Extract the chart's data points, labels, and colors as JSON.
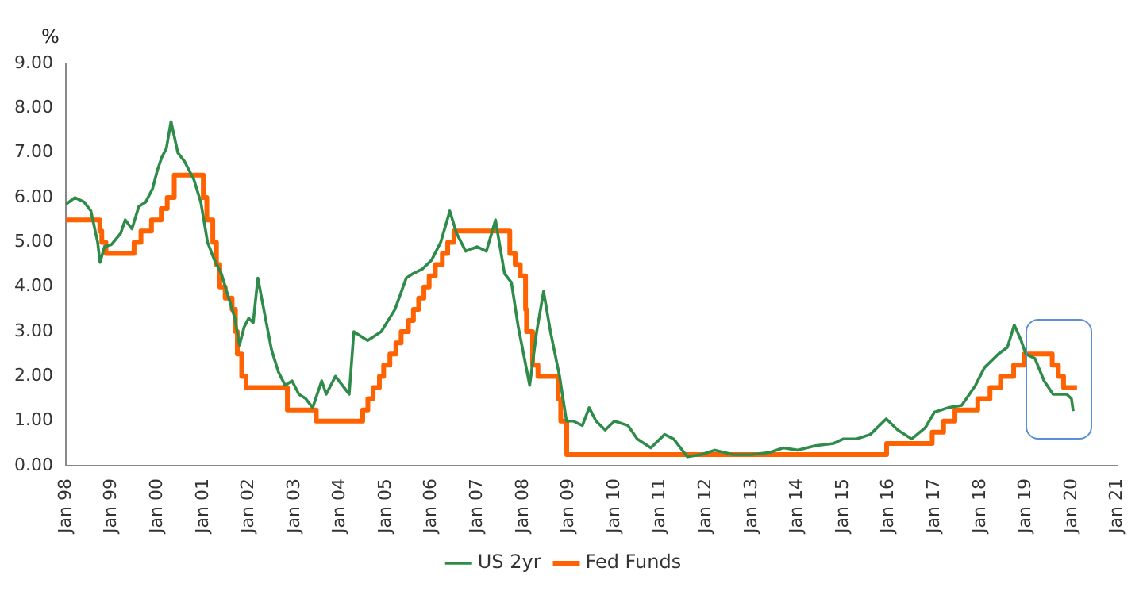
{
  "chart_data": {
    "type": "line",
    "ylabel": "%",
    "xlim": [
      "1998-01",
      "2021-01"
    ],
    "xticks": [
      {
        "value": "1998-01",
        "label": "Jan 98"
      },
      {
        "value": "1999-01",
        "label": "Jan 99"
      },
      {
        "value": "2000-01",
        "label": "Jan 00"
      },
      {
        "value": "2001-01",
        "label": "Jan 01"
      },
      {
        "value": "2002-01",
        "label": "Jan 02"
      },
      {
        "value": "2003-01",
        "label": "Jan 03"
      },
      {
        "value": "2004-01",
        "label": "Jan 04"
      },
      {
        "value": "2005-01",
        "label": "Jan 05"
      },
      {
        "value": "2006-01",
        "label": "Jan 06"
      },
      {
        "value": "2007-01",
        "label": "Jan 07"
      },
      {
        "value": "2008-01",
        "label": "Jan 08"
      },
      {
        "value": "2009-01",
        "label": "Jan 09"
      },
      {
        "value": "2010-01",
        "label": "Jan 10"
      },
      {
        "value": "2011-01",
        "label": "Jan 11"
      },
      {
        "value": "2012-01",
        "label": "Jan 12"
      },
      {
        "value": "2013-01",
        "label": "Jan 13"
      },
      {
        "value": "2014-01",
        "label": "Jan 14"
      },
      {
        "value": "2015-01",
        "label": "Jan 15"
      },
      {
        "value": "2016-01",
        "label": "Jan 16"
      },
      {
        "value": "2017-01",
        "label": "Jan 17"
      },
      {
        "value": "2018-01",
        "label": "Jan 18"
      },
      {
        "value": "2019-01",
        "label": "Jan 19"
      },
      {
        "value": "2020-01",
        "label": "Jan 20"
      },
      {
        "value": "2021-01",
        "label": "Jan 21"
      }
    ],
    "ylim": [
      0,
      9
    ],
    "yticks": [
      {
        "value": 0,
        "label": "0.00"
      },
      {
        "value": 1,
        "label": "1.00"
      },
      {
        "value": 2,
        "label": "2.00"
      },
      {
        "value": 3,
        "label": "3.00"
      },
      {
        "value": 4,
        "label": "4.00"
      },
      {
        "value": 5,
        "label": "5.00"
      },
      {
        "value": 6,
        "label": "6.00"
      },
      {
        "value": 7,
        "label": "7.00"
      },
      {
        "value": 8,
        "label": "8.00"
      },
      {
        "value": 9,
        "label": "9.00"
      }
    ],
    "grid": false,
    "legend": "bottom",
    "marker": "none",
    "line_style": "solid",
    "series": [
      {
        "name": "US 2yr",
        "type": "line",
        "color": "#2e8b4a",
        "x": [
          "1998-01-01",
          "1998-03-15",
          "1998-05-27",
          "1998-07-20",
          "1998-09-12",
          "1998-10-01",
          "1998-11-06",
          "1999-01-01",
          "1999-03-15",
          "1999-04-20",
          "1999-06-13",
          "1999-08-07",
          "1999-10-01",
          "1999-11-25",
          "2000-01-01",
          "2000-02-06",
          "2000-03-14",
          "2000-04-20",
          "2000-06-14",
          "2000-08-08",
          "2000-10-20",
          "2000-12-14",
          "2001-02-06",
          "2001-04-02",
          "2001-05-27",
          "2001-07-20",
          "2001-09-12",
          "2001-10-19",
          "2001-11-25",
          "2002-01-01",
          "2002-02-06",
          "2002-03-15",
          "2002-05-08",
          "2002-07-02",
          "2002-08-26",
          "2002-10-19",
          "2002-12-13",
          "2003-02-06",
          "2003-04-02",
          "2003-05-27",
          "2003-08-07",
          "2003-09-12",
          "2003-11-25",
          "2004-01-19",
          "2004-03-14",
          "2004-04-20",
          "2004-06-14",
          "2004-08-08",
          "2004-11-25",
          "2005-03-15",
          "2005-06-13",
          "2005-08-07",
          "2005-10-19",
          "2006-01-01",
          "2006-03-15",
          "2006-05-27",
          "2006-07-20",
          "2006-10-01",
          "2007-01-01",
          "2007-03-15",
          "2007-05-27",
          "2007-07-02",
          "2007-08-07",
          "2007-10-01",
          "2007-11-25",
          "2008-02-24",
          "2008-04-20",
          "2008-06-14",
          "2008-08-08",
          "2008-10-20",
          "2008-12-14",
          "2009-02-06",
          "2009-04-20",
          "2009-06-13",
          "2009-08-07",
          "2009-10-19",
          "2010-01-01",
          "2010-04-20",
          "2010-07-02",
          "2010-10-19",
          "2011-02-06",
          "2011-04-20",
          "2011-08-07",
          "2011-11-25",
          "2012-03-14",
          "2012-08-08",
          "2013-01-01",
          "2013-05-27",
          "2013-09-12",
          "2014-01-01",
          "2014-05-27",
          "2014-10-19",
          "2015-01-01",
          "2015-04-20",
          "2015-08-07",
          "2015-12-13",
          "2016-03-14",
          "2016-07-02",
          "2016-10-20",
          "2017-01-01",
          "2017-04-20",
          "2017-08-07",
          "2017-11-25",
          "2018-02-06",
          "2018-05-27",
          "2018-08-07",
          "2018-10-01",
          "2018-11-25",
          "2019-01-01",
          "2019-03-15",
          "2019-05-27",
          "2019-08-07",
          "2019-10-01",
          "2019-11-25",
          "2020-01-01",
          "2020-01-15"
        ],
        "values": [
          5.85,
          6.0,
          5.9,
          5.7,
          5.0,
          4.55,
          4.9,
          4.95,
          5.2,
          5.5,
          5.3,
          5.8,
          5.9,
          6.2,
          6.6,
          6.9,
          7.1,
          7.7,
          7.0,
          6.8,
          6.4,
          5.9,
          5.0,
          4.6,
          4.3,
          3.8,
          3.3,
          2.7,
          3.1,
          3.3,
          3.2,
          4.2,
          3.4,
          2.6,
          2.1,
          1.8,
          1.9,
          1.6,
          1.5,
          1.3,
          1.9,
          1.6,
          2.0,
          1.8,
          1.6,
          3.0,
          2.9,
          2.8,
          3.0,
          3.5,
          4.2,
          4.3,
          4.4,
          4.6,
          5.0,
          5.7,
          5.2,
          4.8,
          4.9,
          4.8,
          5.5,
          4.9,
          4.3,
          4.1,
          3.1,
          1.8,
          3.0,
          3.9,
          3.0,
          2.0,
          1.0,
          1.0,
          0.9,
          1.3,
          1.0,
          0.8,
          1.0,
          0.9,
          0.6,
          0.4,
          0.7,
          0.6,
          0.2,
          0.25,
          0.35,
          0.25,
          0.25,
          0.3,
          0.4,
          0.35,
          0.45,
          0.5,
          0.6,
          0.6,
          0.7,
          1.05,
          0.8,
          0.6,
          0.85,
          1.2,
          1.3,
          1.35,
          1.8,
          2.2,
          2.5,
          2.65,
          3.15,
          2.8,
          2.5,
          2.4,
          1.9,
          1.6,
          1.6,
          1.6,
          1.5,
          1.22
        ]
      },
      {
        "name": "Fed Funds",
        "type": "step",
        "color": "#ff6200",
        "x": [
          "1998-01-01",
          "1998-09-29",
          "1998-10-15",
          "1998-11-17",
          "1999-06-30",
          "1999-08-24",
          "1999-11-16",
          "2000-02-02",
          "2000-03-21",
          "2000-05-16",
          "2001-01-03",
          "2001-01-31",
          "2001-03-20",
          "2001-04-18",
          "2001-05-15",
          "2001-06-27",
          "2001-08-21",
          "2001-09-17",
          "2001-10-02",
          "2001-11-06",
          "2001-12-11",
          "2002-11-06",
          "2003-06-25",
          "2004-06-30",
          "2004-08-10",
          "2004-09-21",
          "2004-11-10",
          "2004-12-14",
          "2005-02-02",
          "2005-03-22",
          "2005-05-03",
          "2005-06-30",
          "2005-08-09",
          "2005-09-20",
          "2005-11-01",
          "2005-12-13",
          "2006-01-31",
          "2006-03-28",
          "2006-05-10",
          "2006-06-29",
          "2007-09-18",
          "2007-10-31",
          "2007-12-11",
          "2008-01-22",
          "2008-01-30",
          "2008-03-18",
          "2008-04-30",
          "2008-10-08",
          "2008-10-29",
          "2008-12-16",
          "2015-12-16",
          "2016-12-14",
          "2017-03-15",
          "2017-06-14",
          "2017-12-13",
          "2018-03-21",
          "2018-06-13",
          "2018-09-26",
          "2018-12-19",
          "2019-07-31",
          "2019-09-18",
          "2019-10-30",
          "2020-02-14"
        ],
        "values": [
          5.5,
          5.25,
          5.0,
          4.75,
          5.0,
          5.25,
          5.5,
          5.75,
          6.0,
          6.5,
          6.0,
          5.5,
          5.0,
          4.5,
          4.0,
          3.75,
          3.5,
          3.0,
          2.5,
          2.0,
          1.75,
          1.25,
          1.0,
          1.25,
          1.5,
          1.75,
          2.0,
          2.25,
          2.5,
          2.75,
          3.0,
          3.25,
          3.5,
          3.75,
          4.0,
          4.25,
          4.5,
          4.75,
          5.0,
          5.25,
          4.75,
          4.5,
          4.25,
          3.5,
          3.0,
          2.25,
          2.0,
          1.5,
          1.0,
          0.25,
          0.5,
          0.75,
          1.0,
          1.25,
          1.5,
          1.75,
          2.0,
          2.25,
          2.5,
          2.25,
          2.0,
          1.75,
          1.75
        ]
      }
    ]
  }
}
